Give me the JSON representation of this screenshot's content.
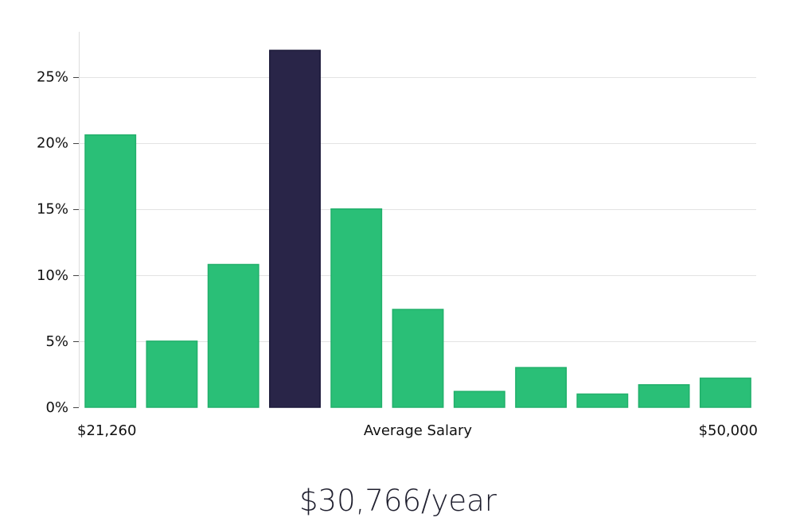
{
  "chart_data": {
    "type": "bar",
    "title": "",
    "xlabel": "Average Salary",
    "ylabel": "",
    "x_min_label": "$21,260",
    "x_max_label": "$50,000",
    "ylim": [
      0,
      28
    ],
    "y_ticks": [
      0,
      5,
      10,
      15,
      20,
      25
    ],
    "y_tick_labels": [
      "0%",
      "5%",
      "10%",
      "15%",
      "20%",
      "25%"
    ],
    "grid": true,
    "values": [
      20.6,
      5.0,
      10.8,
      27.0,
      15.0,
      7.4,
      1.2,
      3.0,
      1.0,
      1.7,
      2.2
    ],
    "highlight_index": 3,
    "bar_color": "#2abf77",
    "highlight_color": "#292548"
  },
  "summary": {
    "salary": "$30,766/year"
  }
}
